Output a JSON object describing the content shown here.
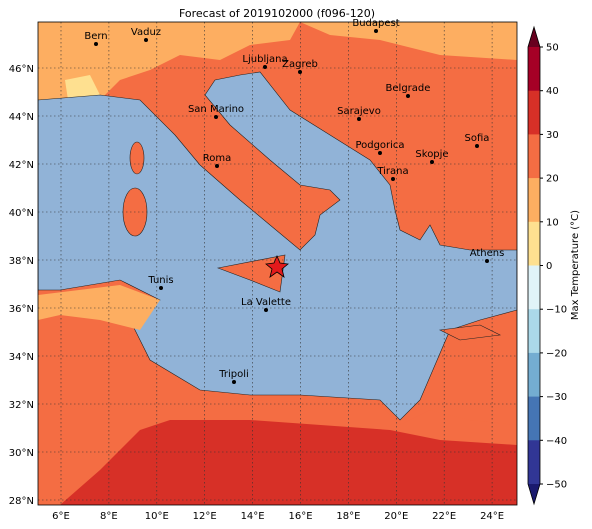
{
  "title": "Forecast of 2019102000 (f096-120)",
  "lon_labels": [
    "6°E",
    "8°E",
    "10°E",
    "12°E",
    "14°E",
    "16°E",
    "18°E",
    "20°E",
    "22°E",
    "24°E"
  ],
  "lat_labels": [
    "46°N",
    "44°N",
    "42°N",
    "40°N",
    "38°N",
    "36°N",
    "34°N",
    "32°N",
    "30°N",
    "28°N"
  ],
  "cities": [
    "Bern",
    "Vaduz",
    "Budapest",
    "Ljubljana",
    "Zagreb",
    "Belgrade",
    "San Marino",
    "Sarajevo",
    "Sofia",
    "Roma",
    "Podgorica",
    "Skopje",
    "Tirana",
    "Athens",
    "Tunis",
    "La Valette",
    "Tripoli"
  ],
  "colorbar": {
    "label": "Max Temperature (°C)",
    "lim": [
      -50,
      50
    ],
    "ticks": [
      50,
      40,
      30,
      20,
      10,
      0,
      {
        "value": -10,
        "label": "−10"
      },
      {
        "value": -20,
        "label": "−20"
      },
      {
        "value": -30,
        "label": "−30"
      },
      {
        "value": -40,
        "label": "−40"
      },
      {
        "value": -50,
        "label": "−50"
      }
    ],
    "colors": [
      "#a50026",
      "#d73027",
      "#f46d43",
      "#fdae61",
      "#fee090",
      "#e0f3f8",
      "#abd9e9",
      "#74add1",
      "#4575b4",
      "#313695"
    ]
  }
}
